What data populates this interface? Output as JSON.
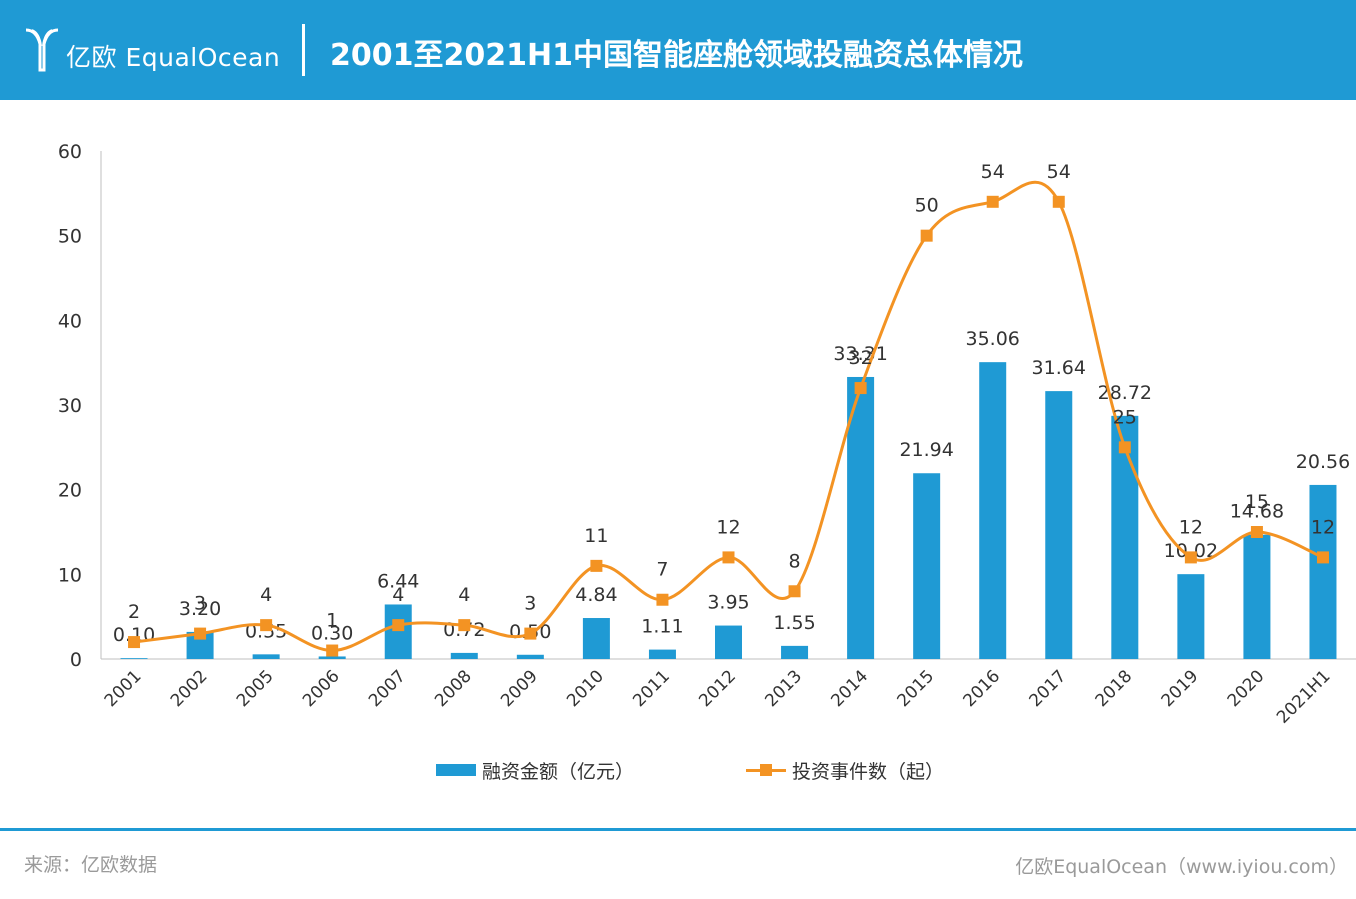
{
  "header": {
    "brand": "亿欧 EqualOcean",
    "title": "2001至2021H1中国智能座舱领域投融资总体情况"
  },
  "footer": {
    "source": "来源：亿欧数据",
    "credit": "亿欧EqualOcean（www.iyiou.com）"
  },
  "colors": {
    "accent": "#1f9ad4",
    "line": "#f39323",
    "text": "#333333"
  },
  "chart_data": {
    "type": "bar",
    "categories": [
      "2001",
      "2002",
      "2005",
      "2006",
      "2007",
      "2008",
      "2009",
      "2010",
      "2011",
      "2012",
      "2013",
      "2014",
      "2015",
      "2016",
      "2017",
      "2018",
      "2019",
      "2020",
      "2021H1"
    ],
    "ylim": [
      0,
      60
    ],
    "yticks": [
      0,
      10,
      20,
      30,
      40,
      50,
      60
    ],
    "series": [
      {
        "name": "融资金额（亿元）",
        "type": "bar",
        "color": "#1f9ad4",
        "values": [
          0.1,
          3.2,
          0.55,
          0.3,
          6.44,
          0.72,
          0.5,
          4.84,
          1.11,
          3.95,
          1.55,
          33.31,
          21.94,
          35.06,
          31.64,
          28.72,
          10.02,
          14.68,
          20.56
        ],
        "labels": [
          "0.10",
          "3.20",
          "0.55",
          "0.30",
          "6.44",
          "0.72",
          "0.50",
          "4.84",
          "1.11",
          "3.95",
          "1.55",
          "33.31",
          "21.94",
          "35.06",
          "31.64",
          "28.72",
          "10.02",
          "14.68",
          "20.56"
        ]
      },
      {
        "name": "投资事件数（起）",
        "type": "line",
        "color": "#f39323",
        "values": [
          2,
          3,
          4,
          1,
          4,
          4,
          3,
          11,
          7,
          12,
          8,
          32,
          50,
          54,
          54,
          25,
          12,
          15,
          12
        ],
        "labels": [
          "2",
          "3",
          "4",
          "1",
          "4",
          "4",
          "3",
          "11",
          "7",
          "12",
          "8",
          "32",
          "50",
          "54",
          "54",
          "25",
          "12",
          "15",
          "12"
        ]
      }
    ],
    "legend_position": "bottom"
  }
}
